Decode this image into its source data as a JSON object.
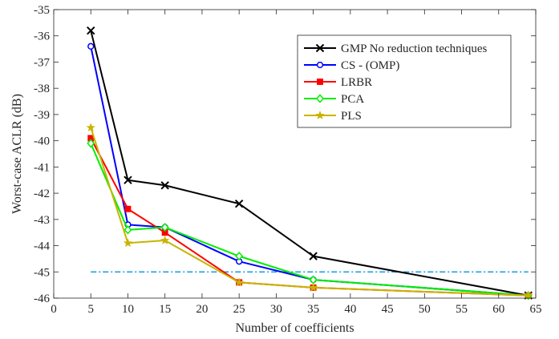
{
  "chart_data": {
    "type": "line",
    "title": "",
    "xlabel": "Number of coefficients",
    "ylabel": "Worst-case ACLR (dB)",
    "xlim": [
      0,
      65
    ],
    "ylim": [
      -46,
      -35
    ],
    "xticks": [
      0,
      5,
      10,
      15,
      20,
      25,
      30,
      35,
      40,
      45,
      50,
      55,
      60,
      65
    ],
    "yticks": [
      -35,
      -36,
      -37,
      -38,
      -39,
      -40,
      -41,
      -42,
      -43,
      -44,
      -45,
      -46
    ],
    "grid": false,
    "legend_position": "top-right",
    "series": [
      {
        "name": "GMP No reduction techniques",
        "color": "#000000",
        "marker": "x",
        "x": [
          5,
          10,
          15,
          25,
          35,
          64
        ],
        "y": [
          -35.8,
          -41.5,
          -41.7,
          -42.4,
          -44.4,
          -45.9
        ]
      },
      {
        "name": "CS - (OMP)",
        "color": "#0000ff",
        "marker": "circle",
        "x": [
          5,
          10,
          15,
          25,
          35,
          64
        ],
        "y": [
          -36.4,
          -43.2,
          -43.3,
          -44.6,
          -45.3,
          -45.9
        ]
      },
      {
        "name": "LRBR",
        "color": "#ff0000",
        "marker": "square",
        "x": [
          5,
          10,
          15,
          25,
          35,
          64
        ],
        "y": [
          -39.9,
          -42.6,
          -43.5,
          -45.4,
          -45.6,
          -45.9
        ]
      },
      {
        "name": "PCA",
        "color": "#00ee00",
        "marker": "diamond",
        "x": [
          5,
          10,
          15,
          25,
          35,
          64
        ],
        "y": [
          -40.1,
          -43.4,
          -43.3,
          -44.4,
          -45.3,
          -45.9
        ]
      },
      {
        "name": "PLS",
        "color": "#c8b400",
        "marker": "star",
        "x": [
          5,
          10,
          15,
          25,
          35,
          64
        ],
        "y": [
          -39.5,
          -43.9,
          -43.8,
          -45.4,
          -45.6,
          -45.9
        ]
      }
    ],
    "reference_line": {
      "y": -45,
      "x": [
        5,
        64
      ],
      "color": "#1ea0e6",
      "style": "dash-dot"
    }
  }
}
